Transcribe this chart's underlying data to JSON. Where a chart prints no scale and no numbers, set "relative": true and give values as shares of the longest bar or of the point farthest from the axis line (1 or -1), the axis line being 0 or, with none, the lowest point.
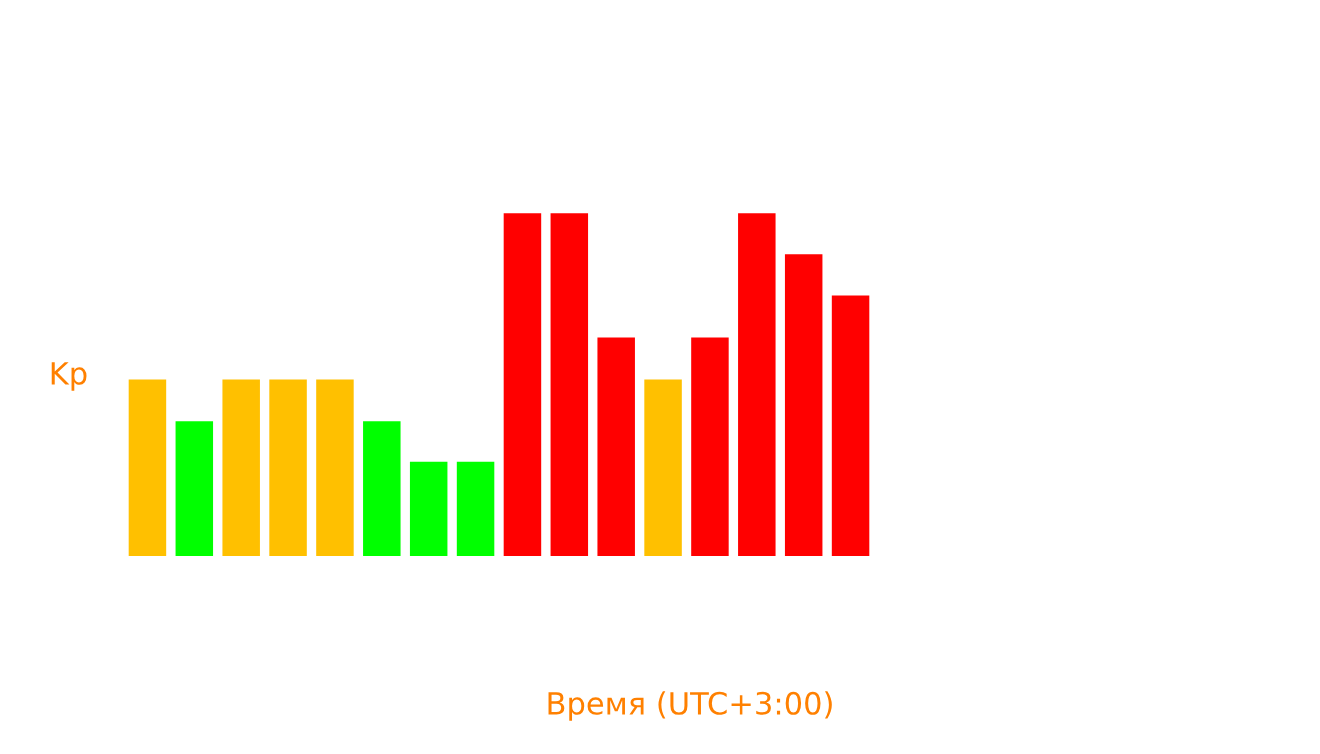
{
  "chart_data": {
    "type": "bar",
    "relative": true,
    "ylabel": "Kp",
    "xlabel": "Время (UTC+3:00)",
    "categories": [
      null,
      null,
      null,
      null,
      null,
      null,
      null,
      null,
      null,
      null,
      null,
      null,
      null,
      null,
      null,
      null
    ],
    "values": [
      0.515,
      0.393,
      0.515,
      0.515,
      0.515,
      0.393,
      0.275,
      0.275,
      1,
      1,
      0.637,
      0.515,
      0.637,
      1,
      0.88,
      0.76
    ],
    "colors": [
      "#ffc000",
      "#00ff00",
      "#ffc000",
      "#ffc000",
      "#ffc000",
      "#00ff00",
      "#00ff00",
      "#00ff00",
      "#ff0000",
      "#ff0000",
      "#ff0000",
      "#ffc000",
      "#ff0000",
      "#ff0000",
      "#ff0000",
      "#ff0000"
    ]
  }
}
